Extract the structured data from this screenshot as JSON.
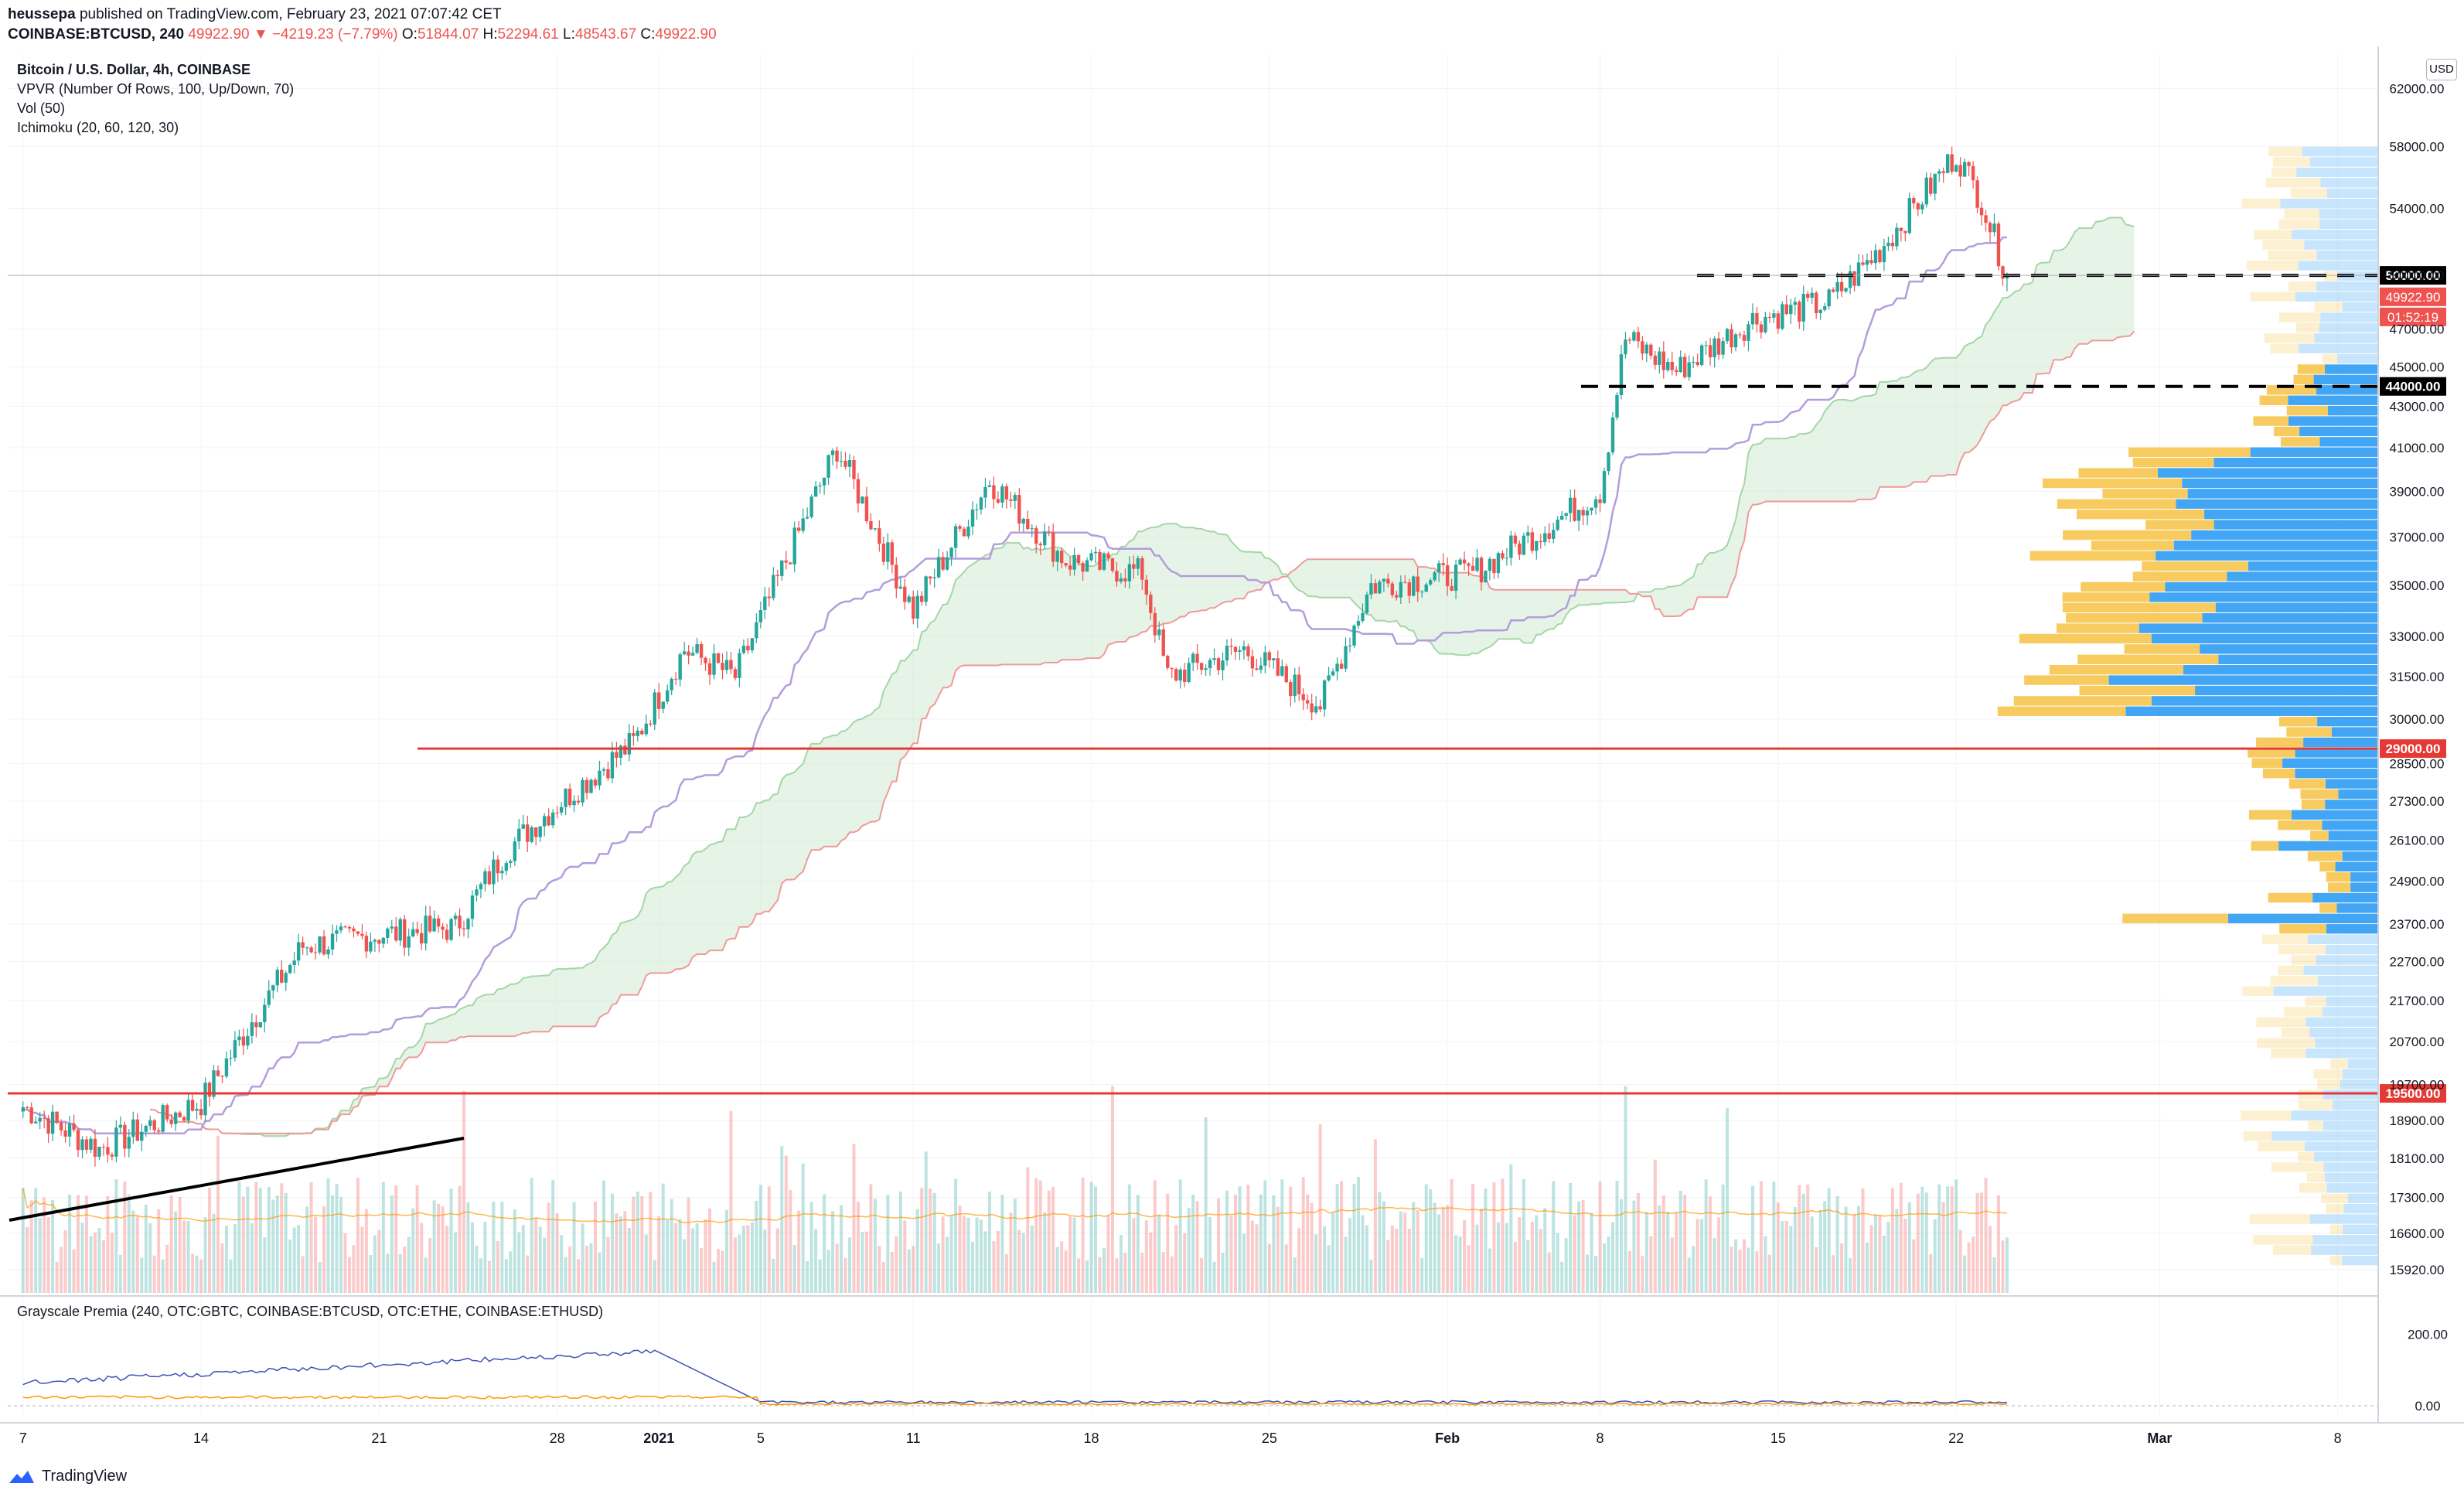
{
  "header": {
    "publisher": "heussepa",
    "published_text": "published on TradingView.com, February 23, 2021 07:07:42 CET",
    "symbol_interval": "COINBASE:BTCUSD, 240",
    "last": "49922.90",
    "change": "▼ −4219.23 (−7.79%)",
    "o_label": "O:",
    "o_value": "51844.07",
    "h_label": "H:",
    "h_value": "52294.61",
    "l_label": "L:",
    "l_value": "48543.67",
    "c_label": "C:",
    "c_value": "49922.90"
  },
  "legend": {
    "title": "Bitcoin / U.S. Dollar, 4h, COINBASE",
    "vpvr": "VPVR (Number Of Rows, 100, Up/Down, 70)",
    "vol": "Vol (50)",
    "ichimoku": "Ichimoku (20, 60, 120, 30)"
  },
  "sub_pane": {
    "title": "Grayscale Premia (240, OTC:GBTC, COINBASE:BTCUSD, OTC:ETHE, COINBASE:ETHUSD)",
    "ticks": [
      "200.00",
      "0.00"
    ]
  },
  "currency_button": "USD",
  "brand": "TradingView",
  "colors": {
    "up": "#26a69a",
    "down": "#ef5350",
    "kijun": "#b39ddb",
    "tenkan_fill_up": "#c8e6c9",
    "span_b": "#ef9a9a",
    "span_a": "#a5d6a7",
    "vp_up": "#2196f3",
    "vp_down": "#f7c244",
    "red_line": "#e53935",
    "premia_btc": "#3f51b5",
    "premia_eth": "#ff9800"
  },
  "chart_data": {
    "type": "candlestick",
    "y_scale": "log",
    "ylim": [
      15500,
      64500
    ],
    "y_ticks": [
      "62000.00",
      "58000.00",
      "54000.00",
      "50000.00",
      "47000.00",
      "45000.00",
      "43000.00",
      "41000.00",
      "39000.00",
      "37000.00",
      "35000.00",
      "33000.00",
      "31500.00",
      "30000.00",
      "28500.00",
      "27300.00",
      "26100.00",
      "24900.00",
      "23700.00",
      "22700.00",
      "21700.00",
      "20700.00",
      "19700.00",
      "18900.00",
      "18100.00",
      "17300.00",
      "16600.00",
      "15920.00"
    ],
    "x_ticks": [
      "7",
      "14",
      "21",
      "28",
      "2021",
      "5",
      "11",
      "18",
      "25",
      "Feb",
      "8",
      "15",
      "22",
      "Mar",
      "8"
    ],
    "price_path": [
      {
        "d": "Dec 7",
        "p": 19200
      },
      {
        "d": "Dec 10",
        "p": 18300
      },
      {
        "d": "Dec 14",
        "p": 19300
      },
      {
        "d": "Dec 16",
        "p": 21200
      },
      {
        "d": "Dec 18",
        "p": 23100
      },
      {
        "d": "Dec 21",
        "p": 23400
      },
      {
        "d": "Dec 24",
        "p": 23600
      },
      {
        "d": "Dec 26",
        "p": 25800
      },
      {
        "d": "Dec 28",
        "p": 27200
      },
      {
        "d": "Dec 31",
        "p": 29200
      },
      {
        "d": "Jan 2",
        "p": 32500
      },
      {
        "d": "Jan 4",
        "p": 31500
      },
      {
        "d": "Jan 6",
        "p": 36000
      },
      {
        "d": "Jan 8",
        "p": 41000
      },
      {
        "d": "Jan 11",
        "p": 34000
      },
      {
        "d": "Jan 14",
        "p": 39500
      },
      {
        "d": "Jan 17",
        "p": 36000
      },
      {
        "d": "Jan 20",
        "p": 35500
      },
      {
        "d": "Jan 21",
        "p": 31500
      },
      {
        "d": "Jan 24",
        "p": 32500
      },
      {
        "d": "Jan 27",
        "p": 30500
      },
      {
        "d": "Jan 29",
        "p": 35000
      },
      {
        "d": "Feb 2",
        "p": 35500
      },
      {
        "d": "Feb 5",
        "p": 37500
      },
      {
        "d": "Feb 7",
        "p": 39000
      },
      {
        "d": "Feb 8",
        "p": 46500
      },
      {
        "d": "Feb 10",
        "p": 44800
      },
      {
        "d": "Feb 13",
        "p": 47500
      },
      {
        "d": "Feb 16",
        "p": 48500
      },
      {
        "d": "Feb 18",
        "p": 51500
      },
      {
        "d": "Feb 21",
        "p": 57500
      },
      {
        "d": "Feb 22",
        "p": 54500
      },
      {
        "d": "Feb 23",
        "p": 49922.9
      }
    ],
    "horizontal_levels": [
      {
        "label": "50000.00",
        "value": 50000,
        "style": "dashed",
        "color": "#000000"
      },
      {
        "label": "44000.00",
        "value": 44000,
        "style": "dashed",
        "color": "#000000"
      },
      {
        "label": "29000.00",
        "value": 29000,
        "style": "solid",
        "color": "#e53935"
      },
      {
        "label": "19500.00",
        "value": 19500,
        "style": "solid",
        "color": "#e53935"
      }
    ],
    "last_price_label": "49922.90",
    "countdown_label": "01:52:19",
    "partial_tick_labels": [
      "6(",
      "19700.00"
    ]
  }
}
